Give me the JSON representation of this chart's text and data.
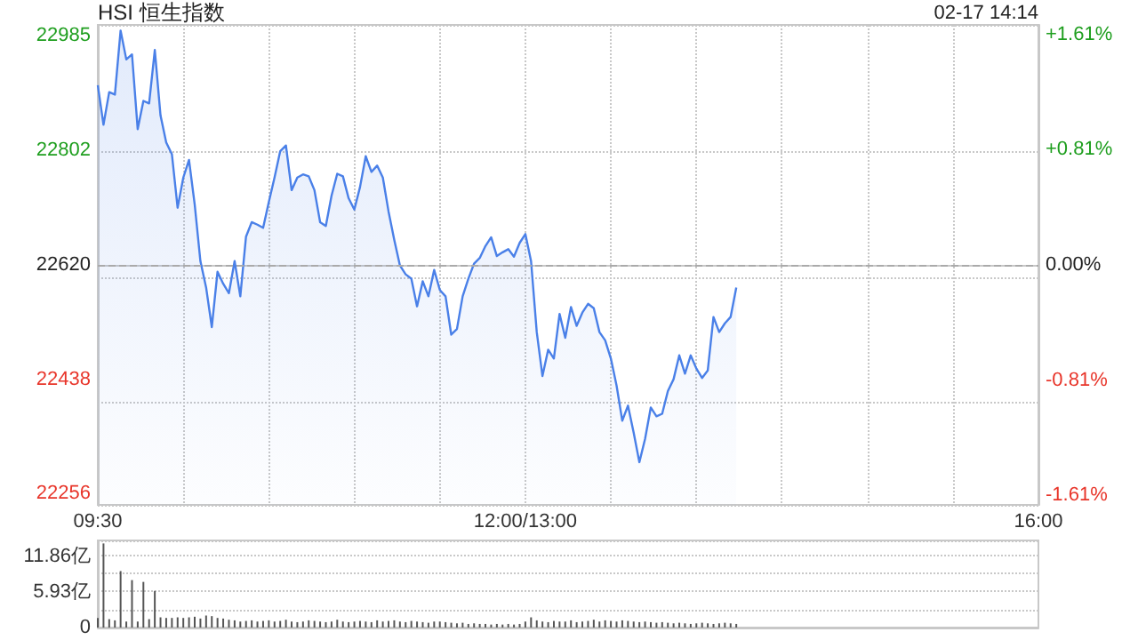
{
  "chart_data": [
    {
      "type": "area",
      "title": "HSI 恒生指数",
      "annotations": [
        "02-17 14:14"
      ],
      "color": "#4a80e8",
      "categories": [
        "09:30",
        null,
        null,
        null,
        null,
        null,
        null,
        null,
        null,
        null,
        null,
        null,
        null,
        null,
        null,
        null,
        null,
        null,
        null,
        null,
        null,
        null,
        null,
        null,
        null,
        null,
        null,
        null,
        null,
        null,
        null,
        null,
        null,
        null,
        null,
        null,
        null,
        null,
        null,
        null,
        null,
        null,
        null,
        null,
        null,
        null,
        null,
        null,
        null,
        null,
        null,
        null,
        null,
        null,
        null,
        null,
        null,
        null,
        null,
        null,
        null,
        null,
        null,
        null,
        null,
        null,
        null,
        null,
        null,
        null,
        null,
        null,
        null,
        null,
        null,
        "12:00/13:00",
        null,
        null,
        null,
        null,
        null,
        null,
        null,
        null,
        null,
        null,
        null,
        null,
        null,
        null,
        null,
        null,
        null,
        null,
        null,
        null,
        null,
        null,
        null,
        null,
        null,
        null,
        null,
        null,
        null,
        null,
        null,
        null,
        null,
        null,
        null,
        null,
        null,
        null,
        null,
        null,
        null,
        null,
        null,
        null,
        null,
        null,
        null,
        null,
        null,
        null,
        null,
        null,
        null,
        null,
        null,
        null,
        null,
        null,
        null,
        null,
        null,
        null,
        null,
        null,
        null,
        null,
        null,
        null,
        null,
        null,
        null,
        null,
        null,
        null,
        null,
        null,
        null,
        null,
        null,
        null,
        null,
        null,
        null,
        null,
        null,
        null,
        null,
        null,
        null,
        "16:00"
      ],
      "values": [
        22906,
        22843,
        22895,
        22891,
        22993,
        22947,
        22955,
        22836,
        22881,
        22877,
        22962,
        22858,
        22815,
        22796,
        22711,
        22759,
        22787,
        22716,
        22626,
        22584,
        22521,
        22609,
        22590,
        22575,
        22626,
        22570,
        22665,
        22688,
        22684,
        22679,
        22720,
        22759,
        22801,
        22810,
        22739,
        22759,
        22764,
        22761,
        22739,
        22688,
        22682,
        22730,
        22765,
        22761,
        22726,
        22708,
        22744,
        22793,
        22768,
        22778,
        22759,
        22705,
        22660,
        22619,
        22605,
        22598,
        22554,
        22594,
        22570,
        22612,
        22580,
        22570,
        22509,
        22518,
        22570,
        22598,
        22622,
        22631,
        22650,
        22664,
        22634,
        22640,
        22645,
        22633,
        22655,
        22669,
        22626,
        22513,
        22443,
        22485,
        22471,
        22542,
        22504,
        22553,
        22523,
        22544,
        22558,
        22551,
        22513,
        22500,
        22471,
        22428,
        22372,
        22396,
        22353,
        22306,
        22343,
        22393,
        22379,
        22383,
        22419,
        22438,
        22476,
        22447,
        22476,
        22455,
        22440,
        22452,
        22537,
        22513,
        22527,
        22537,
        22584,
        null,
        null,
        null,
        null,
        null,
        null,
        null,
        null,
        null,
        null,
        null,
        null,
        null,
        null,
        null,
        null,
        null,
        null,
        null,
        null,
        null,
        null,
        null,
        null,
        null,
        null,
        null,
        null,
        null,
        null,
        null,
        null,
        null,
        null,
        null,
        null,
        null,
        null,
        null,
        null,
        null,
        null,
        null,
        null,
        null,
        null,
        null,
        null,
        null,
        null,
        null,
        null,
        null
      ],
      "ylim": [
        22238,
        23002
      ],
      "yticks": [
        22256,
        22438,
        22620,
        22802,
        22985
      ],
      "y2lim": [
        -1.68,
        1.68
      ],
      "y2ticks": [
        {
          "value": -1.61,
          "label": "-1.61%"
        },
        {
          "value": -0.81,
          "label": "-0.81%"
        },
        {
          "value": 0,
          "label": "0.00%"
        },
        {
          "value": 0.81,
          "label": "+0.81%"
        },
        {
          "value": 1.61,
          "label": "+1.61%"
        }
      ],
      "ref_lines": [
        {
          "axis": "y",
          "value": 22620,
          "line_style": "dashed",
          "color": "#aaaaaa"
        }
      ],
      "grid": true
    },
    {
      "type": "bar",
      "color": "#555555",
      "tick_labels": "y",
      "grid": "y",
      "categories": [
        null,
        null,
        null,
        null,
        null,
        null,
        null,
        null,
        null,
        null,
        null,
        null,
        null,
        null,
        null,
        null,
        null,
        null,
        null,
        null,
        null,
        null,
        null,
        null,
        null,
        null,
        null,
        null,
        null,
        null,
        null,
        null,
        null,
        null,
        null,
        null,
        null,
        null,
        null,
        null,
        null,
        null,
        null,
        null,
        null,
        null,
        null,
        null,
        null,
        null,
        null,
        null,
        null,
        null,
        null,
        null,
        null,
        null,
        null,
        null,
        null,
        null,
        null,
        null,
        null,
        null,
        null,
        null,
        null,
        null,
        null,
        null,
        null,
        null,
        null,
        null,
        null,
        null,
        null,
        null,
        null,
        null,
        null,
        null,
        null,
        null,
        null,
        null,
        null,
        null,
        null,
        null,
        null,
        null,
        null,
        null,
        null,
        null,
        null,
        null,
        null,
        null,
        null,
        null,
        null,
        null,
        null,
        null,
        null,
        null,
        null,
        null,
        null,
        null,
        null,
        null,
        null,
        null,
        null,
        null,
        null,
        null,
        null,
        null,
        null,
        null,
        null,
        null,
        null,
        null,
        null,
        null,
        null,
        null,
        null,
        null,
        null,
        null,
        null,
        null,
        null,
        null,
        null,
        null,
        null,
        null,
        null,
        null,
        null,
        null,
        null,
        null,
        null,
        null,
        null,
        null,
        null,
        null,
        null,
        null,
        null,
        null,
        null,
        null,
        null,
        null
      ],
      "values": [
        1.6,
        14.0,
        1.4,
        1.2,
        9.4,
        1.0,
        7.9,
        1.0,
        7.6,
        1.4,
        6.1,
        1.7,
        1.6,
        1.6,
        1.7,
        1.6,
        1.7,
        1.8,
        1.5,
        2.0,
        1.9,
        1.6,
        1.5,
        1.3,
        1.2,
        1.0,
        1.1,
        1.2,
        1.0,
        1.1,
        1.2,
        1.0,
        1.1,
        1.3,
        1.0,
        0.9,
        1.0,
        1.2,
        1.1,
        1.0,
        0.9,
        1.0,
        1.3,
        1.0,
        0.9,
        1.0,
        1.1,
        1.0,
        0.9,
        1.2,
        1.0,
        1.1,
        1.2,
        1.0,
        0.9,
        1.1,
        1.0,
        0.9,
        0.8,
        1.0,
        1.0,
        0.9,
        0.8,
        0.7,
        0.8,
        0.6,
        0.7,
        0.6,
        0.6,
        0.5,
        0.6,
        0.5,
        0.6,
        0.5,
        0.6,
        1.0,
        1.7,
        1.2,
        1.0,
        0.9,
        1.1,
        1.0,
        1.0,
        1.2,
        0.9,
        1.0,
        1.1,
        1.3,
        1.0,
        1.2,
        1.1,
        1.0,
        1.2,
        1.1,
        1.0,
        0.9,
        1.0,
        0.9,
        0.8,
        0.9,
        0.8,
        0.7,
        0.8,
        0.7,
        0.6,
        0.7,
        0.8,
        0.7,
        0.6,
        0.7,
        0.8,
        0.7,
        0.6,
        null,
        null,
        null,
        null,
        null,
        null,
        null,
        null,
        null,
        null,
        null,
        null,
        null,
        null,
        null,
        null,
        null,
        null,
        null,
        null,
        null,
        null,
        null,
        null,
        null,
        null,
        null,
        null,
        null,
        null,
        null,
        null,
        null,
        null,
        null,
        null,
        null,
        null,
        null,
        null,
        null,
        null,
        null,
        null,
        null,
        null,
        null,
        null,
        null,
        null,
        null,
        null,
        null
      ],
      "ylim": [
        0,
        14.5
      ],
      "yticks": [
        {
          "value": 0,
          "label": "0"
        },
        {
          "value": 5.93,
          "label": "5.93亿"
        },
        {
          "value": 11.86,
          "label": "11.86亿"
        }
      ]
    }
  ]
}
